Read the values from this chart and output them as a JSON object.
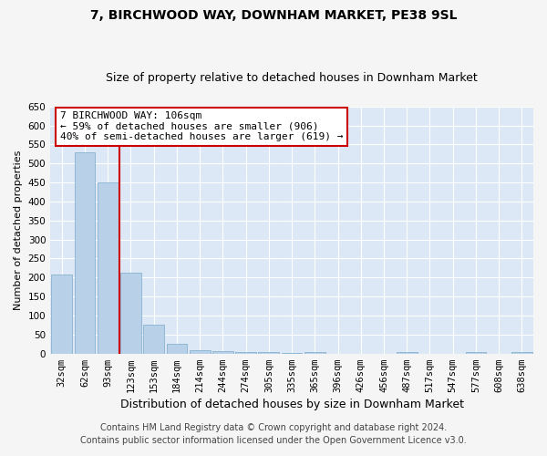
{
  "title": "7, BIRCHWOOD WAY, DOWNHAM MARKET, PE38 9SL",
  "subtitle": "Size of property relative to detached houses in Downham Market",
  "xlabel": "Distribution of detached houses by size in Downham Market",
  "ylabel": "Number of detached properties",
  "footnote1": "Contains HM Land Registry data © Crown copyright and database right 2024.",
  "footnote2": "Contains public sector information licensed under the Open Government Licence v3.0.",
  "categories": [
    "32sqm",
    "62sqm",
    "93sqm",
    "123sqm",
    "153sqm",
    "184sqm",
    "214sqm",
    "244sqm",
    "274sqm",
    "305sqm",
    "335sqm",
    "365sqm",
    "396sqm",
    "426sqm",
    "456sqm",
    "487sqm",
    "517sqm",
    "547sqm",
    "577sqm",
    "608sqm",
    "638sqm"
  ],
  "values": [
    207,
    530,
    450,
    213,
    75,
    25,
    10,
    6,
    3,
    5,
    2,
    5,
    0,
    0,
    0,
    5,
    0,
    0,
    5,
    0,
    5
  ],
  "bar_color": "#b8d0e8",
  "bar_edge_color": "#7aaaca",
  "fig_background_color": "#f5f5f5",
  "plot_background_color": "#dce8f5",
  "grid_color": "#ffffff",
  "annotation_line1": "7 BIRCHWOOD WAY: 106sqm",
  "annotation_line2": "← 59% of detached houses are smaller (906)",
  "annotation_line3": "40% of semi-detached houses are larger (619) →",
  "annotation_box_color": "#cc0000",
  "property_line_color": "#cc0000",
  "property_line_x": 2.5,
  "ylim": [
    0,
    650
  ],
  "yticks": [
    0,
    50,
    100,
    150,
    200,
    250,
    300,
    350,
    400,
    450,
    500,
    550,
    600,
    650
  ],
  "title_fontsize": 10,
  "subtitle_fontsize": 9,
  "xlabel_fontsize": 9,
  "ylabel_fontsize": 8,
  "tick_fontsize": 7.5,
  "annotation_fontsize": 8,
  "footnote_fontsize": 7
}
